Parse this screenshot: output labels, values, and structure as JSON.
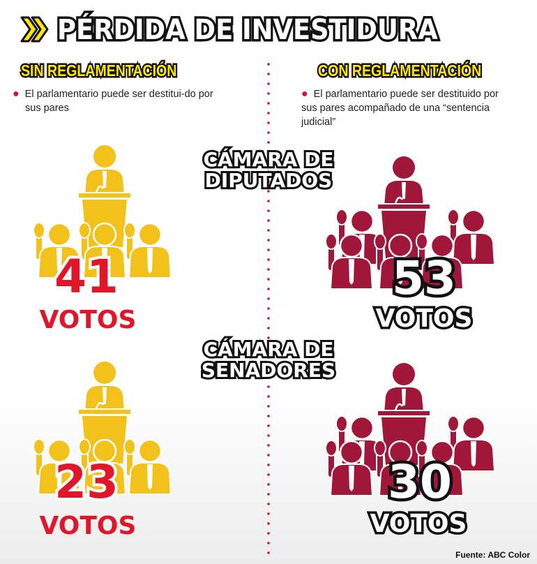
{
  "title": "PÉRDIDA DE INVESTIDURA",
  "icon": "double-chevron-icon",
  "colors": {
    "accent_yellow": "#ffe600",
    "left_group": "#f2c21b",
    "right_group": "#a0173a",
    "left_number": "#e0162b",
    "divider": "#d0142c"
  },
  "columns": [
    {
      "heading": "SIN REGLAMENTACIÓN",
      "bullet": "El parlamentario puede ser destitui-do por sus pares"
    },
    {
      "heading": "CON REGLAMENTACIÓN",
      "bullet": "El parlamentario puede ser destituido por sus pares acompañado de una “sentencia judicial”"
    }
  ],
  "chambers": [
    {
      "name_line1": "CÁMARA DE",
      "name_line2": "DIPUTADOS",
      "sin_votes": "41",
      "con_votes": "53"
    },
    {
      "name_line1": "CÁMARA DE",
      "name_line2": "SENADORES",
      "sin_votes": "23",
      "con_votes": "30"
    }
  ],
  "votes_label": "VOTOS",
  "source": "Fuente: ABC Color"
}
